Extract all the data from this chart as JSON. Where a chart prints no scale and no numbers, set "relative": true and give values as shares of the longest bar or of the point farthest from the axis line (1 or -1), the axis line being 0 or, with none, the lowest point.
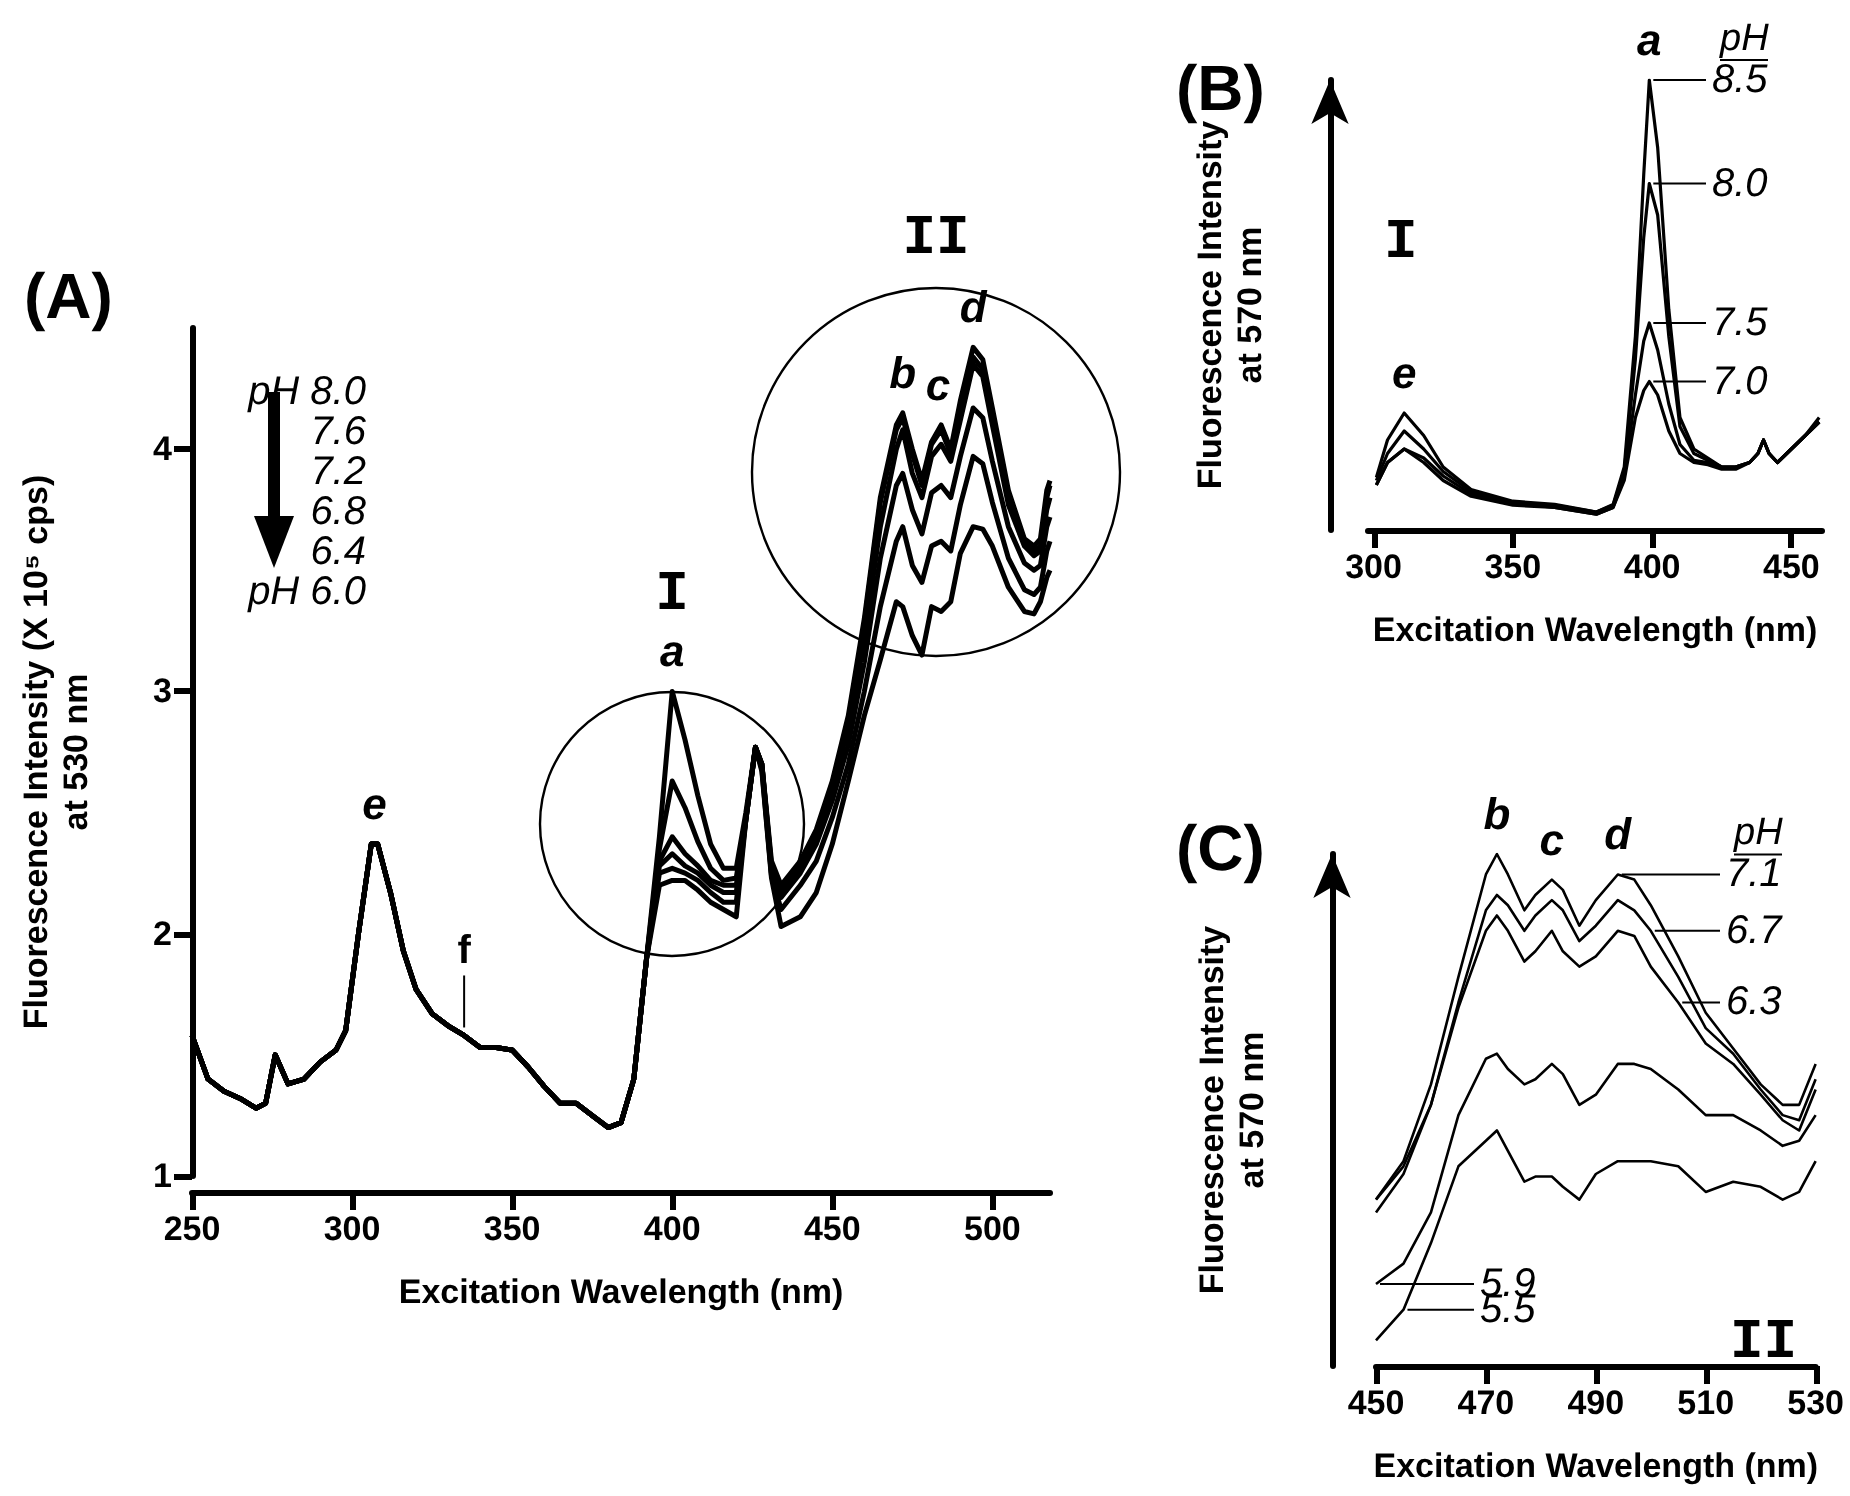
{
  "chart_data": [
    {
      "type": "line",
      "title": "(A)",
      "xlabel": "Excitation Wavelength (nm)",
      "ylabel": "Fluorescence Intensity (X 10⁵ cps)\nat 530 nm",
      "x": [
        250,
        255,
        260,
        265,
        270,
        273,
        276,
        280,
        285,
        290,
        295,
        298,
        302,
        306,
        308,
        312,
        316,
        320,
        325,
        330,
        335,
        340,
        345,
        350,
        355,
        360,
        365,
        370,
        375,
        380,
        384,
        388,
        392,
        396,
        400,
        404,
        408,
        412,
        416,
        420,
        423,
        426,
        428,
        431,
        434,
        440,
        445,
        450,
        455,
        460,
        465,
        470,
        472,
        475,
        478,
        481,
        484,
        487,
        490,
        494,
        497,
        500,
        505,
        510,
        513,
        515,
        517,
        518
      ],
      "series": [
        {
          "color": "#000000",
          "values": [
            1.58,
            1.4,
            1.35,
            1.32,
            1.28,
            1.3,
            1.5,
            1.38,
            1.4,
            1.47,
            1.52,
            1.6,
            2.0,
            2.37,
            2.37,
            2.17,
            1.93,
            1.77,
            1.67,
            1.62,
            1.58,
            1.53,
            1.53,
            1.52,
            1.45,
            1.37,
            1.3,
            1.3,
            1.25,
            1.2,
            1.22,
            1.4,
            1.9,
            2.4,
            3.0,
            2.8,
            2.57,
            2.37,
            2.27,
            2.27,
            2.5,
            2.77,
            2.7,
            2.3,
            2.2,
            2.3,
            2.43,
            2.63,
            2.9,
            3.3,
            3.8,
            4.1,
            4.15,
            4.0,
            3.87,
            4.03,
            4.1,
            4.0,
            4.2,
            4.42,
            4.37,
            4.17,
            3.83,
            3.63,
            3.6,
            3.63,
            3.83,
            3.87
          ]
        },
        {
          "color": "#000000",
          "values": [
            1.58,
            1.4,
            1.35,
            1.32,
            1.28,
            1.3,
            1.5,
            1.38,
            1.4,
            1.47,
            1.52,
            1.6,
            2.0,
            2.37,
            2.37,
            2.17,
            1.93,
            1.77,
            1.67,
            1.62,
            1.58,
            1.53,
            1.53,
            1.52,
            1.45,
            1.37,
            1.3,
            1.3,
            1.25,
            1.2,
            1.22,
            1.4,
            1.9,
            2.35,
            2.63,
            2.52,
            2.38,
            2.27,
            2.22,
            2.23,
            2.48,
            2.77,
            2.7,
            2.28,
            2.18,
            2.28,
            2.42,
            2.62,
            2.88,
            3.28,
            3.78,
            4.08,
            4.13,
            3.98,
            3.85,
            4.02,
            4.08,
            3.98,
            4.18,
            4.38,
            4.33,
            4.14,
            3.8,
            3.62,
            3.58,
            3.6,
            3.8,
            3.85
          ]
        },
        {
          "color": "#000000",
          "values": [
            1.58,
            1.4,
            1.35,
            1.32,
            1.28,
            1.3,
            1.5,
            1.38,
            1.4,
            1.47,
            1.52,
            1.6,
            2.0,
            2.37,
            2.37,
            2.17,
            1.93,
            1.77,
            1.67,
            1.62,
            1.58,
            1.53,
            1.53,
            1.52,
            1.45,
            1.37,
            1.3,
            1.3,
            1.25,
            1.2,
            1.22,
            1.4,
            1.9,
            2.3,
            2.4,
            2.33,
            2.28,
            2.22,
            2.2,
            2.2,
            2.47,
            2.77,
            2.7,
            2.27,
            2.17,
            2.27,
            2.4,
            2.6,
            2.85,
            3.22,
            3.68,
            4.0,
            4.08,
            3.9,
            3.8,
            3.97,
            4.02,
            3.95,
            4.12,
            4.35,
            4.3,
            4.1,
            3.77,
            3.6,
            3.56,
            3.58,
            3.75,
            3.8
          ]
        },
        {
          "color": "#000000",
          "values": [
            1.58,
            1.4,
            1.35,
            1.32,
            1.28,
            1.3,
            1.5,
            1.38,
            1.4,
            1.47,
            1.52,
            1.6,
            2.0,
            2.37,
            2.37,
            2.17,
            1.93,
            1.77,
            1.67,
            1.62,
            1.58,
            1.53,
            1.53,
            1.52,
            1.45,
            1.37,
            1.3,
            1.3,
            1.25,
            1.2,
            1.22,
            1.4,
            1.9,
            2.28,
            2.33,
            2.28,
            2.25,
            2.2,
            2.17,
            2.17,
            2.47,
            2.77,
            2.7,
            2.25,
            2.15,
            2.25,
            2.37,
            2.55,
            2.78,
            3.12,
            3.55,
            3.85,
            3.9,
            3.75,
            3.65,
            3.82,
            3.85,
            3.8,
            3.97,
            4.17,
            4.13,
            3.95,
            3.68,
            3.53,
            3.5,
            3.52,
            3.68,
            3.72
          ]
        },
        {
          "color": "#000000",
          "values": [
            1.58,
            1.4,
            1.35,
            1.32,
            1.28,
            1.3,
            1.5,
            1.38,
            1.4,
            1.47,
            1.52,
            1.6,
            2.0,
            2.37,
            2.37,
            2.17,
            1.93,
            1.77,
            1.67,
            1.62,
            1.58,
            1.53,
            1.53,
            1.52,
            1.45,
            1.37,
            1.3,
            1.3,
            1.25,
            1.2,
            1.22,
            1.4,
            1.9,
            2.25,
            2.27,
            2.25,
            2.22,
            2.17,
            2.13,
            2.13,
            2.47,
            2.77,
            2.68,
            2.24,
            2.1,
            2.2,
            2.3,
            2.48,
            2.7,
            3.0,
            3.35,
            3.62,
            3.68,
            3.52,
            3.45,
            3.6,
            3.62,
            3.58,
            3.77,
            3.97,
            3.94,
            3.78,
            3.55,
            3.42,
            3.4,
            3.43,
            3.58,
            3.62
          ]
        },
        {
          "color": "#000000",
          "values": [
            1.58,
            1.4,
            1.35,
            1.32,
            1.28,
            1.3,
            1.5,
            1.38,
            1.4,
            1.47,
            1.52,
            1.6,
            2.0,
            2.37,
            2.37,
            2.17,
            1.93,
            1.77,
            1.67,
            1.62,
            1.58,
            1.53,
            1.53,
            1.52,
            1.45,
            1.37,
            1.3,
            1.3,
            1.25,
            1.2,
            1.22,
            1.4,
            1.9,
            2.2,
            2.22,
            2.22,
            2.18,
            2.13,
            2.1,
            2.07,
            2.47,
            2.77,
            2.67,
            2.23,
            2.03,
            2.07,
            2.17,
            2.37,
            2.63,
            2.9,
            3.13,
            3.37,
            3.35,
            3.23,
            3.15,
            3.35,
            3.33,
            3.37,
            3.57,
            3.68,
            3.67,
            3.6,
            3.43,
            3.33,
            3.32,
            3.37,
            3.47,
            3.5
          ]
        }
      ],
      "xlim": [
        250,
        518
      ],
      "xticks": [
        250,
        300,
        350,
        400,
        450,
        500
      ],
      "ylim": [
        1,
        4.5
      ],
      "yticks": [
        1,
        2,
        3,
        4
      ],
      "annotations": [
        "I",
        "II",
        {
          "text": "a",
          "x": 400,
          "y": 3.0
        },
        {
          "text": "b",
          "x": 472,
          "y": 4.15
        },
        {
          "text": "c",
          "x": 483,
          "y": 4.1
        },
        {
          "text": "d",
          "x": 494,
          "y": 4.42
        },
        {
          "text": "e",
          "x": 307,
          "y": 2.37
        },
        {
          "text": "f",
          "x": 335,
          "y": 1.58
        },
        "pH 8.0",
        "7.6",
        "7.2",
        "6.8",
        "6.4",
        "pH 6.0"
      ]
    },
    {
      "type": "line",
      "title": "(B)",
      "xlabel": "Excitation Wavelength (nm)",
      "ylabel": "Fluorescence Intensity\nat 570 nm",
      "relative": true,
      "legend_title": "pH",
      "legend": "top right",
      "x": [
        301,
        305,
        311,
        318,
        325,
        335,
        350,
        365,
        380,
        386,
        390,
        394,
        397,
        399,
        402,
        406,
        410,
        415,
        420,
        425,
        430,
        435,
        438,
        440,
        442,
        445,
        450,
        455,
        460
      ],
      "series": [
        {
          "name": "8.5",
          "color": "#000000",
          "values": [
            0.117,
            0.2,
            0.26,
            0.21,
            0.14,
            0.09,
            0.064,
            0.057,
            0.04,
            0.057,
            0.14,
            0.43,
            0.79,
            1.0,
            0.85,
            0.49,
            0.25,
            0.18,
            0.16,
            0.14,
            0.14,
            0.15,
            0.17,
            0.2,
            0.17,
            0.15,
            0.18,
            0.21,
            0.25
          ]
        },
        {
          "name": "8.0",
          "color": "#000000",
          "values": [
            0.11,
            0.17,
            0.22,
            0.18,
            0.13,
            0.085,
            0.06,
            0.055,
            0.04,
            0.055,
            0.13,
            0.38,
            0.65,
            0.77,
            0.7,
            0.43,
            0.23,
            0.17,
            0.155,
            0.14,
            0.14,
            0.15,
            0.17,
            0.2,
            0.17,
            0.15,
            0.18,
            0.21,
            0.24
          ]
        },
        {
          "name": "7.5",
          "color": "#000000",
          "values": [
            0.1,
            0.15,
            0.18,
            0.16,
            0.12,
            0.08,
            0.06,
            0.05,
            0.035,
            0.05,
            0.12,
            0.3,
            0.42,
            0.46,
            0.4,
            0.28,
            0.19,
            0.155,
            0.15,
            0.14,
            0.14,
            0.15,
            0.17,
            0.2,
            0.17,
            0.15,
            0.18,
            0.21,
            0.24
          ]
        },
        {
          "name": "7.0",
          "color": "#000000",
          "values": [
            0.1,
            0.15,
            0.18,
            0.15,
            0.11,
            0.075,
            0.055,
            0.05,
            0.035,
            0.05,
            0.11,
            0.25,
            0.31,
            0.33,
            0.3,
            0.22,
            0.17,
            0.15,
            0.145,
            0.135,
            0.135,
            0.15,
            0.17,
            0.2,
            0.17,
            0.15,
            0.18,
            0.21,
            0.24
          ]
        }
      ],
      "xlim": [
        298,
        461
      ],
      "xticks": [
        300,
        350,
        400,
        450
      ],
      "annotations": [
        "I",
        {
          "text": "a",
          "x": 399,
          "y": 1.0
        },
        {
          "text": "e",
          "x": 311,
          "y": 0.26
        }
      ]
    },
    {
      "type": "line",
      "title": "(C)",
      "xlabel": "Excitation Wavelength (nm)",
      "ylabel": "Fluorescence Intensity\nat 570 nm",
      "relative": true,
      "legend_title": "pH",
      "legend": "right",
      "x": [
        450,
        455,
        460,
        465,
        470,
        472,
        474,
        477,
        479,
        482,
        484,
        487,
        490,
        494,
        497,
        500,
        505,
        510,
        515,
        520,
        524,
        527,
        530
      ],
      "series": [
        {
          "name": "7.1",
          "color": "#000000",
          "values": [
            0.325,
            0.4,
            0.55,
            0.76,
            0.96,
            1.0,
            0.96,
            0.89,
            0.92,
            0.95,
            0.93,
            0.86,
            0.91,
            0.96,
            0.95,
            0.9,
            0.8,
            0.69,
            0.62,
            0.55,
            0.51,
            0.51,
            0.59
          ]
        },
        {
          "name": "6.7",
          "color": "#000000",
          "values": [
            0.3,
            0.375,
            0.51,
            0.71,
            0.89,
            0.92,
            0.9,
            0.85,
            0.88,
            0.91,
            0.89,
            0.83,
            0.86,
            0.91,
            0.89,
            0.85,
            0.76,
            0.66,
            0.61,
            0.54,
            0.49,
            0.48,
            0.56
          ]
        },
        {
          "name": "6.3",
          "color": "#000000",
          "values": [
            0.325,
            0.39,
            0.51,
            0.7,
            0.85,
            0.88,
            0.85,
            0.79,
            0.81,
            0.85,
            0.81,
            0.78,
            0.8,
            0.85,
            0.84,
            0.78,
            0.71,
            0.63,
            0.59,
            0.53,
            0.48,
            0.46,
            0.54
          ]
        },
        {
          "name": "5.9",
          "color": "#000000",
          "values": [
            0.16,
            0.2,
            0.3,
            0.49,
            0.6,
            0.61,
            0.58,
            0.55,
            0.56,
            0.59,
            0.57,
            0.51,
            0.53,
            0.59,
            0.59,
            0.58,
            0.54,
            0.49,
            0.49,
            0.46,
            0.43,
            0.44,
            0.49
          ]
        },
        {
          "name": "5.5",
          "color": "#000000",
          "values": [
            0.05,
            0.11,
            0.24,
            0.39,
            0.44,
            0.46,
            0.42,
            0.36,
            0.37,
            0.37,
            0.35,
            0.325,
            0.375,
            0.4,
            0.4,
            0.4,
            0.39,
            0.34,
            0.36,
            0.35,
            0.325,
            0.34,
            0.4
          ]
        }
      ],
      "xlim": [
        450,
        530
      ],
      "xticks": [
        450,
        470,
        490,
        510,
        530
      ],
      "annotations": [
        {
          "text": "b",
          "x": 472,
          "y": 1.0
        },
        {
          "text": "c",
          "x": 482,
          "y": 0.95
        },
        {
          "text": "d",
          "x": 494,
          "y": 0.96
        },
        "II"
      ]
    }
  ]
}
